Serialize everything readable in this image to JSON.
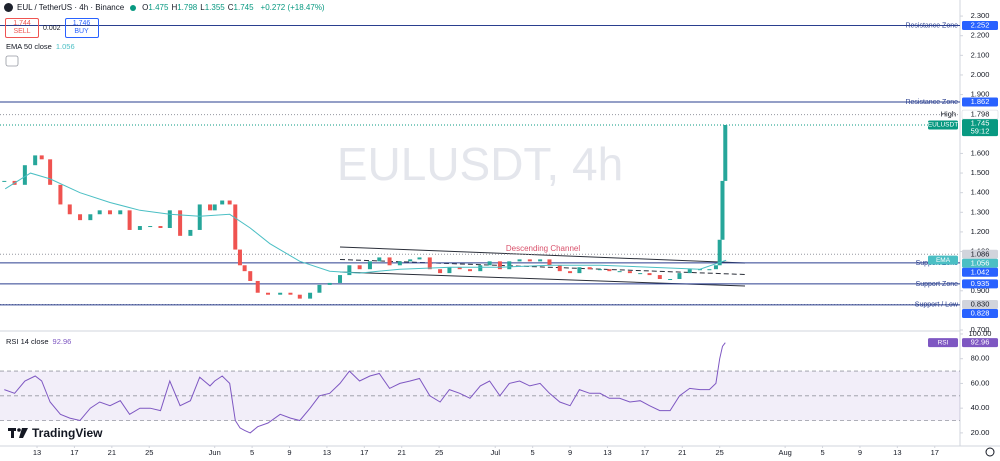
{
  "header": {
    "symbol": "EUL / TetherUS · 4h · Binance",
    "ohlc": [
      {
        "label": "O",
        "value": "1.475"
      },
      {
        "label": "H",
        "value": "1.798"
      },
      {
        "label": "L",
        "value": "1.355"
      },
      {
        "label": "C",
        "value": "1.745"
      }
    ],
    "change": "+0.272 (+18.47%)"
  },
  "trade": {
    "sell_price": "1.744",
    "sell": "SELL",
    "spread": "0.002",
    "buy_price": "1.746",
    "buy": "BUY"
  },
  "watermark": "EULUSDT, 4h",
  "logo": "TradingView",
  "channel_label": "Descending Channel",
  "chart_data": [
    {
      "type": "candlestick",
      "legend": {
        "name": "EMA 50 close",
        "value": 1.056
      },
      "xlim": [
        9.04,
        111.7
      ],
      "xticks": [
        13,
        17,
        21,
        25,
        {
          "value": 32,
          "label": "Jun"
        },
        {
          "value": 36,
          "label": "5"
        },
        {
          "value": 40,
          "label": "9"
        },
        {
          "value": 44,
          "label": "13"
        },
        {
          "value": 48,
          "label": "17"
        },
        {
          "value": 52,
          "label": "21"
        },
        {
          "value": 56,
          "label": "25"
        },
        {
          "value": 62,
          "label": "Jul"
        },
        {
          "value": 66,
          "label": "5"
        },
        {
          "value": 70,
          "label": "9"
        },
        {
          "value": 74,
          "label": "13"
        },
        {
          "value": 78,
          "label": "17"
        },
        {
          "value": 82,
          "label": "21"
        },
        {
          "value": 86,
          "label": "25"
        },
        {
          "value": 93,
          "label": "Aug"
        },
        {
          "value": 97,
          "label": "5"
        },
        {
          "value": 101,
          "label": "9"
        },
        {
          "value": 105,
          "label": "13"
        },
        {
          "value": 109,
          "label": "17"
        }
      ],
      "ylim": [
        0.695,
        2.382
      ],
      "yticks": [
        {
          "value": 2.3,
          "label": "2.300"
        },
        {
          "value": 2.2,
          "label": "2.200"
        },
        {
          "value": 2.1,
          "label": "2.100"
        },
        {
          "value": 2.0,
          "label": "2.000"
        },
        {
          "value": 1.9,
          "label": "1.900"
        },
        {
          "value": 1.6,
          "label": "1.600"
        },
        {
          "value": 1.5,
          "label": "1.500"
        },
        {
          "value": 1.4,
          "label": "1.400"
        },
        {
          "value": 1.3,
          "label": "1.300"
        },
        {
          "value": 1.2,
          "label": "1.200"
        },
        {
          "value": 1.1,
          "label": "1.100"
        },
        {
          "value": 0.9,
          "label": "0.900"
        },
        {
          "value": 0.7,
          "label": "0.700"
        }
      ],
      "series": [
        {
          "name": "EULUSDT",
          "up_color": "#26a69a",
          "down_color": "#ef5350",
          "x": [
            9.5,
            10.6,
            11.7,
            12.8,
            13.5,
            14.4,
            15.5,
            16.5,
            17.6,
            18.7,
            19.7,
            20.8,
            21.9,
            22.9,
            24.0,
            25.1,
            26.2,
            27.2,
            28.3,
            29.4,
            30.4,
            31.5,
            32.0,
            32.8,
            33.6,
            34.2,
            34.7,
            35.2,
            35.8,
            36.6,
            37.7,
            39.0,
            40.1,
            41.1,
            42.2,
            43.2,
            44.3,
            45.4,
            46.4,
            47.5,
            48.6,
            49.6,
            50.7,
            51.8,
            52.9,
            53.9,
            55.0,
            56.1,
            57.1,
            58.2,
            59.3,
            60.4,
            61.4,
            62.5,
            63.5,
            64.6,
            65.7,
            66.8,
            67.8,
            68.9,
            70.0,
            71.0,
            72.1,
            73.2,
            74.2,
            75.3,
            76.4,
            77.5,
            78.5,
            79.6,
            80.7,
            81.7,
            82.8,
            83.9,
            84.9,
            85.6,
            86.0,
            86.3,
            86.6
          ],
          "values": [
            1.46,
            1.44,
            1.54,
            1.59,
            1.57,
            1.44,
            1.34,
            1.29,
            1.26,
            1.29,
            1.31,
            1.29,
            1.31,
            1.21,
            1.23,
            1.23,
            1.22,
            1.31,
            1.18,
            1.21,
            1.34,
            1.31,
            1.34,
            1.36,
            1.34,
            1.11,
            1.03,
            1.0,
            0.95,
            0.89,
            0.88,
            0.89,
            0.88,
            0.86,
            0.89,
            0.93,
            0.94,
            0.98,
            1.03,
            1.01,
            1.05,
            1.07,
            1.03,
            1.05,
            1.06,
            1.07,
            1.01,
            0.99,
            1.02,
            1.01,
            1.0,
            1.03,
            1.05,
            1.01,
            1.05,
            1.06,
            1.05,
            1.06,
            1.03,
            1.0,
            0.99,
            1.02,
            1.01,
            1.01,
            1.0,
            1.0,
            0.99,
            0.99,
            0.98,
            0.96,
            0.96,
            0.99,
            1.01,
            1.01,
            1.01,
            1.03,
            1.16,
            1.46,
            1.745
          ]
        },
        {
          "name": "EMA",
          "color": "#4bbfc4",
          "x": [
            9.6,
            12.3,
            14.4,
            17.6,
            20.8,
            24.0,
            27.2,
            30.4,
            33.6,
            35.8,
            37.9,
            41.1,
            44.3,
            47.5,
            51.8,
            57.2,
            62.5,
            67.9,
            73.2,
            78.6,
            83.9,
            86.7
          ],
          "values": [
            1.42,
            1.5,
            1.47,
            1.4,
            1.35,
            1.31,
            1.29,
            1.28,
            1.29,
            1.22,
            1.14,
            1.05,
            1.0,
            0.99,
            1.01,
            1.02,
            1.02,
            1.03,
            1.03,
            1.02,
            1.01,
            1.056
          ]
        }
      ],
      "levels": [
        {
          "name": "Resistance Zone",
          "value": 2.252,
          "label": "2.252"
        },
        {
          "name": "Resistance Zone",
          "value": 1.862,
          "label": "1.862"
        },
        {
          "name": "Support Zone",
          "value": 1.042,
          "label": "1.042"
        },
        {
          "name": "Support Zone",
          "value": 0.935,
          "label": "0.935"
        },
        {
          "name": "Support / Low",
          "value": 0.828,
          "label": "0.828"
        }
      ],
      "level_color": "#2a3f8f",
      "high": {
        "label": "High",
        "value": 1.798
      },
      "last": {
        "label": "EULUSDT",
        "value": 1.745,
        "countdown": "59:12"
      },
      "marks": [
        {
          "value": 1.086,
          "label": "1.086"
        },
        {
          "value": 0.83,
          "label": "0.830"
        }
      ]
    },
    {
      "type": "line",
      "legend": {
        "name": "RSI 14 close",
        "value": 92.96
      },
      "tag": "RSI",
      "color": "#7e57c2",
      "ylim": [
        9.4,
        102.4
      ],
      "yticks": [
        {
          "value": 100,
          "label": "100.00"
        },
        {
          "value": 80,
          "label": "80.00"
        },
        {
          "value": 60,
          "label": "60.00"
        },
        {
          "value": 40,
          "label": "40.00"
        },
        {
          "value": 20,
          "label": "20.00"
        }
      ],
      "levels": [
        70,
        50,
        30
      ],
      "values": [
        55,
        52,
        62,
        66,
        62,
        45,
        35,
        32,
        30,
        40,
        45,
        42,
        46,
        35,
        40,
        40,
        38,
        62,
        42,
        46,
        65,
        58,
        62,
        66,
        60,
        30,
        24,
        22,
        20,
        25,
        28,
        35,
        32,
        30,
        40,
        50,
        52,
        60,
        70,
        62,
        66,
        68,
        56,
        60,
        62,
        64,
        50,
        45,
        55,
        52,
        48,
        58,
        62,
        50,
        60,
        62,
        58,
        60,
        52,
        45,
        42,
        55,
        52,
        52,
        48,
        48,
        45,
        46,
        42,
        38,
        38,
        50,
        56,
        55,
        55,
        60,
        80,
        90,
        92.96
      ]
    }
  ]
}
